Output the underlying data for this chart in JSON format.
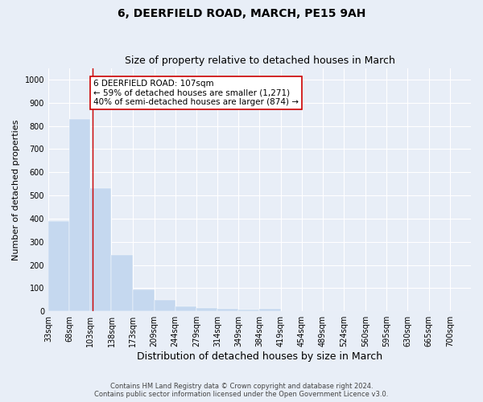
{
  "title1": "6, DEERFIELD ROAD, MARCH, PE15 9AH",
  "title2": "Size of property relative to detached houses in March",
  "xlabel": "Distribution of detached houses by size in March",
  "ylabel": "Number of detached properties",
  "bar_edges": [
    33,
    68,
    103,
    138,
    173,
    209,
    244,
    279,
    314,
    349,
    384,
    419,
    454,
    489,
    524,
    560,
    595,
    630,
    665,
    700,
    735
  ],
  "bar_values": [
    390,
    830,
    530,
    245,
    95,
    50,
    20,
    13,
    10,
    8,
    10,
    0,
    0,
    0,
    0,
    0,
    0,
    0,
    0,
    0
  ],
  "bar_color": "#c5d8ef",
  "bar_edge_color": "#c5d8ef",
  "vline_x": 107,
  "vline_color": "#cc0000",
  "annotation_text": "6 DEERFIELD ROAD: 107sqm\n← 59% of detached houses are smaller (1,271)\n40% of semi-detached houses are larger (874) →",
  "annotation_box_color": "white",
  "annotation_box_edge_color": "#cc0000",
  "ylim": [
    0,
    1050
  ],
  "yticks": [
    0,
    100,
    200,
    300,
    400,
    500,
    600,
    700,
    800,
    900,
    1000
  ],
  "footnote1": "Contains HM Land Registry data © Crown copyright and database right 2024.",
  "footnote2": "Contains public sector information licensed under the Open Government Licence v3.0.",
  "background_color": "#e8eef7",
  "plot_bg_color": "#e8eef7",
  "title1_fontsize": 10,
  "title2_fontsize": 9,
  "xlabel_fontsize": 9,
  "ylabel_fontsize": 8,
  "annotation_fontsize": 7.5,
  "tick_fontsize": 7,
  "footnote_fontsize": 6
}
